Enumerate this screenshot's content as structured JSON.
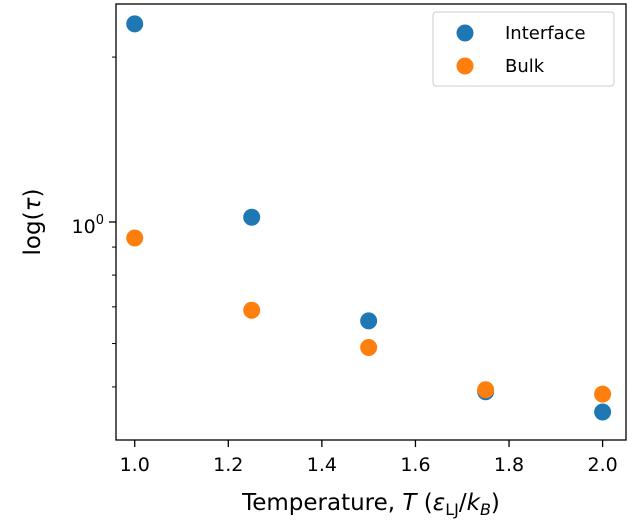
{
  "chart_data": {
    "type": "scatter",
    "xlabel": {
      "prefix": "Temperature, ",
      "var": "T",
      "open": " (",
      "eps": "ε",
      "eps_sub": "LJ",
      "slash": "/",
      "k": "k",
      "k_sub": "B",
      "close": ")"
    },
    "ylabel": {
      "prefix": "log(",
      "var": "τ",
      "suffix": ")"
    },
    "x_ticks": [
      "1.0",
      "1.2",
      "1.4",
      "1.6",
      "1.8",
      "2.0"
    ],
    "x_tick_values": [
      1.0,
      1.2,
      1.4,
      1.6,
      1.8,
      2.0
    ],
    "xlim": [
      0.96,
      2.05
    ],
    "y_scale": "log",
    "ylim": [
      0.4,
      2.5
    ],
    "y_major_tick": {
      "value": 1.0,
      "base": "10",
      "exp": "0"
    },
    "y_minor_ticks": [
      0.5,
      0.6,
      0.7,
      0.8,
      0.9,
      2.0
    ],
    "grid": false,
    "legend_position": "top-right",
    "series": [
      {
        "name": "Interface",
        "color": "#1f77b4",
        "x": [
          1.0,
          1.25,
          1.5,
          1.75,
          2.0
        ],
        "y": [
          2.3,
          1.02,
          0.66,
          0.49,
          0.45
        ]
      },
      {
        "name": "Bulk",
        "color": "#ff7f0e",
        "x": [
          1.0,
          1.25,
          1.5,
          1.75,
          2.0
        ],
        "y": [
          0.935,
          0.69,
          0.59,
          0.494,
          0.485
        ]
      }
    ]
  }
}
